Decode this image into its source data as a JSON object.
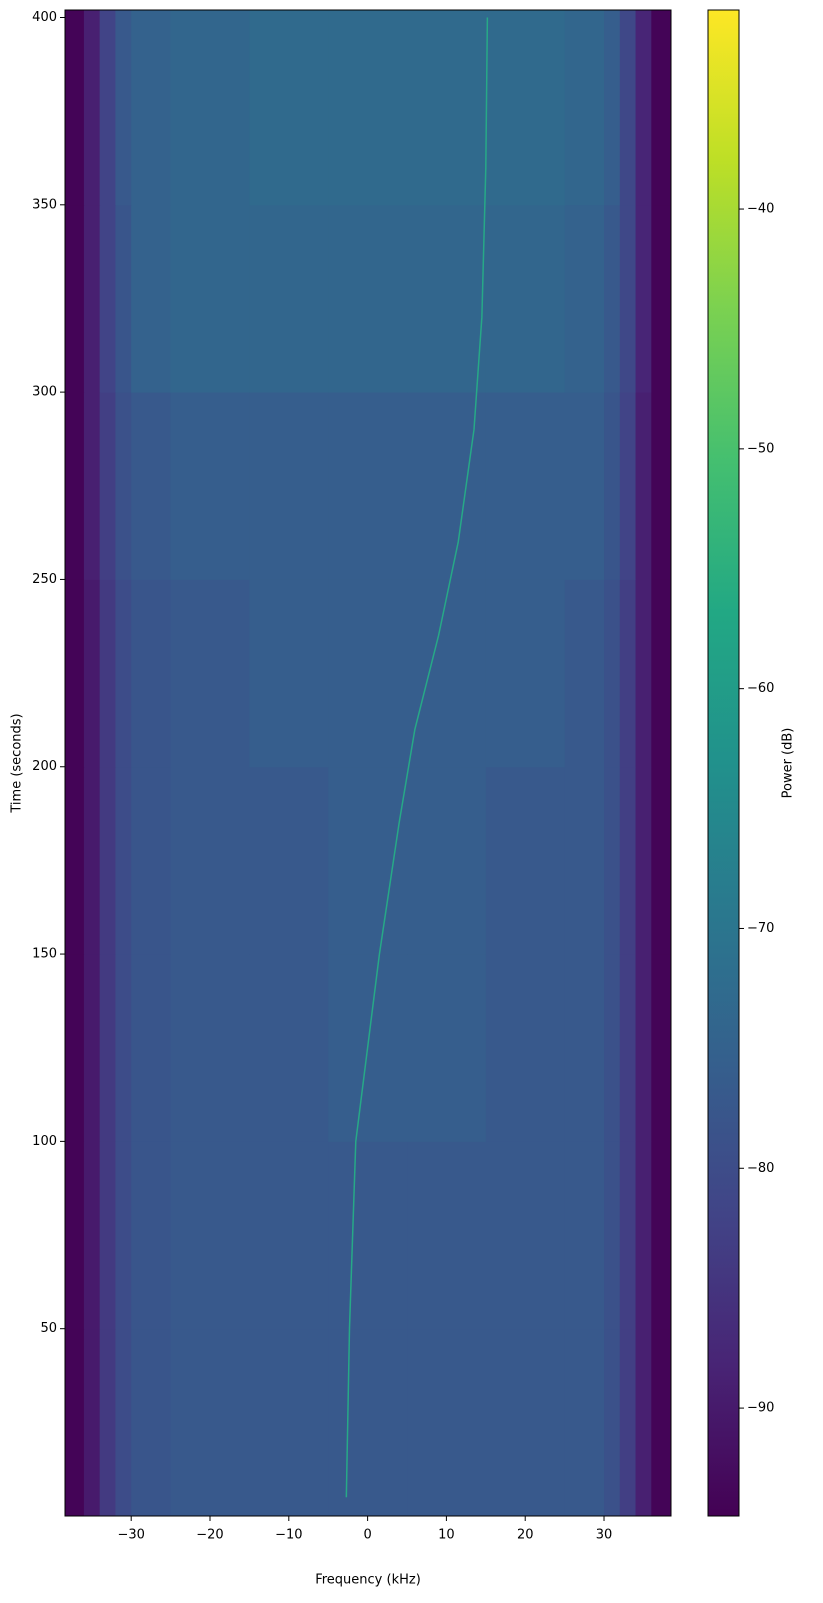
{
  "chart_data": {
    "type": "heatmap",
    "xlabel": "Frequency (kHz)",
    "ylabel": "Time (seconds)",
    "colorbar_label": "Power (dB)",
    "colormap": "viridis",
    "xlim": [
      -38.4,
      38.5
    ],
    "ylim": [
      0,
      402
    ],
    "clim": [
      -94.5,
      -31.7
    ],
    "xticks": [
      {
        "value": -30,
        "label": "−30"
      },
      {
        "value": -20,
        "label": "−20"
      },
      {
        "value": -10,
        "label": "−10"
      },
      0,
      10,
      20,
      30
    ],
    "yticks": [
      50,
      100,
      150,
      200,
      250,
      300,
      350,
      400
    ],
    "cticks": [
      {
        "value": -40,
        "label": "−40"
      },
      {
        "value": -50,
        "label": "−50"
      },
      {
        "value": -60,
        "label": "−60"
      },
      {
        "value": -70,
        "label": "−70"
      },
      {
        "value": -80,
        "label": "−80"
      },
      {
        "value": -90,
        "label": "−90"
      }
    ],
    "freq_edges": [
      -38.4,
      -36,
      -34,
      -32,
      -30,
      -25,
      -15,
      -5,
      5,
      15,
      25,
      30,
      32,
      34,
      36,
      38.5
    ],
    "time_edges": [
      0,
      50,
      100,
      150,
      200,
      250,
      300,
      350,
      402
    ],
    "power": [
      [
        -94,
        -90,
        -84,
        -80,
        -78,
        -77,
        -77,
        -77,
        -77,
        -77,
        -77,
        -79,
        -83,
        -89,
        -94
      ],
      [
        -94,
        -90,
        -84,
        -80,
        -78,
        -77,
        -77,
        -77,
        -77,
        -77,
        -77,
        -79,
        -83,
        -89,
        -94
      ],
      [
        -94,
        -90,
        -84,
        -80,
        -78,
        -77,
        -77,
        -76,
        -76,
        -77,
        -77,
        -79,
        -83,
        -89,
        -94
      ],
      [
        -94,
        -90,
        -84,
        -80,
        -78,
        -77,
        -77,
        -76,
        -76,
        -77,
        -77,
        -79,
        -83,
        -89,
        -94
      ],
      [
        -94,
        -90,
        -84,
        -80,
        -78,
        -77,
        -76,
        -76,
        -76,
        -76,
        -77,
        -79,
        -83,
        -89,
        -94
      ],
      [
        -94,
        -89,
        -83,
        -79,
        -77,
        -76,
        -76,
        -76,
        -76,
        -76,
        -76,
        -78,
        -82,
        -89,
        -94
      ],
      [
        -94,
        -89,
        -82,
        -78,
        -75,
        -74,
        -74,
        -74,
        -74,
        -74,
        -75,
        -77,
        -81,
        -88,
        -94
      ],
      [
        -94,
        -89,
        -82,
        -77,
        -75,
        -74,
        -73,
        -73,
        -73,
        -73,
        -74,
        -76,
        -81,
        -88,
        -94
      ]
    ],
    "trace": {
      "color": "#27a987",
      "x": [
        -2.7,
        -2.3,
        -1.5,
        0,
        1.5,
        4,
        6,
        9,
        11.5,
        13.5,
        14.5,
        15,
        15.2
      ],
      "y": [
        5,
        50,
        100,
        125,
        150,
        185,
        210,
        235,
        260,
        290,
        320,
        360,
        400
      ]
    }
  }
}
